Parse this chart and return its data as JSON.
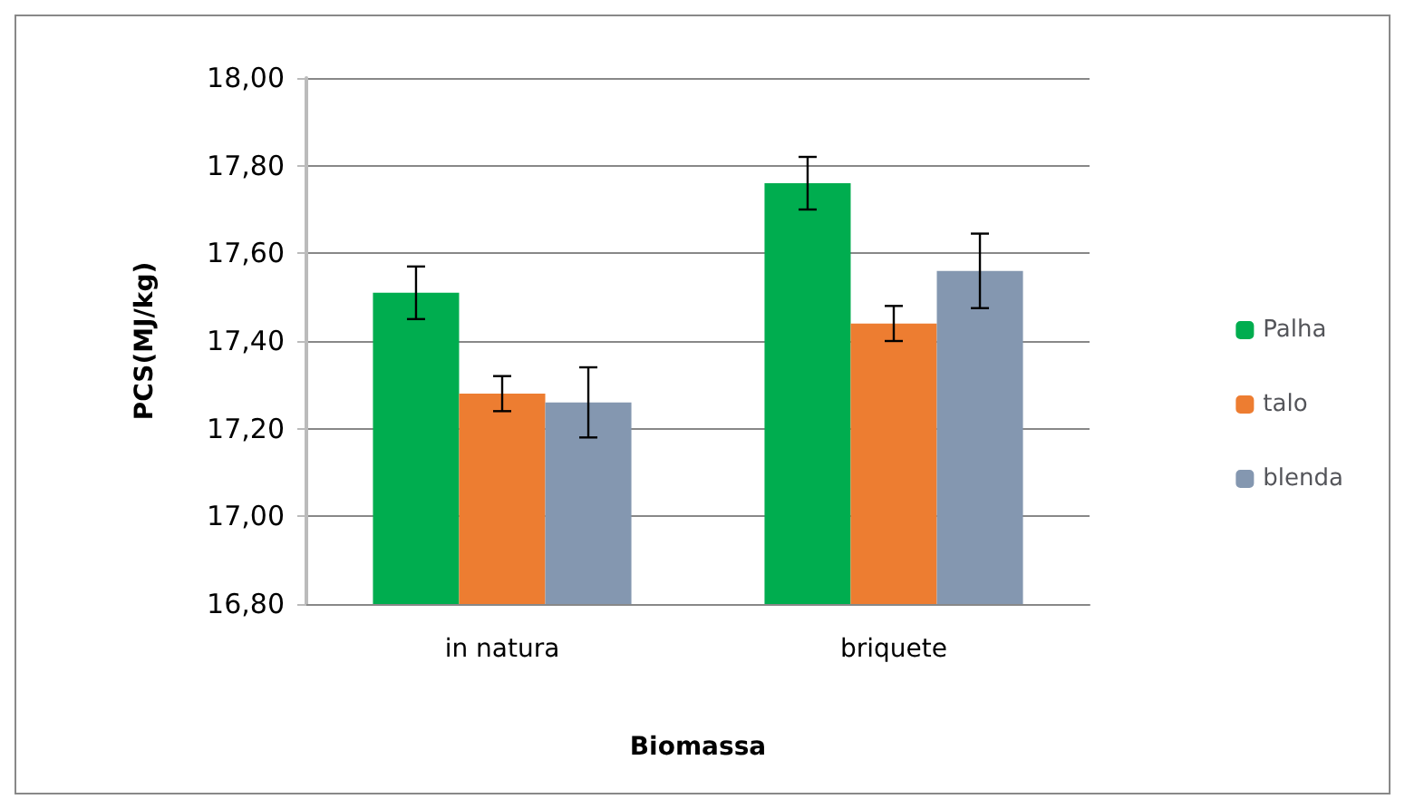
{
  "chart_data": {
    "type": "bar",
    "xlabel": "Biomassa",
    "ylabel": "PCS(MJ/kg)",
    "categories": [
      "in natura",
      "briquete"
    ],
    "series": [
      {
        "name": "Palha",
        "color": "#00ad4f",
        "values": [
          17.51,
          17.76
        ],
        "errors": [
          0.06,
          0.06
        ]
      },
      {
        "name": "talo",
        "color": "#ed7d31",
        "values": [
          17.28,
          17.44
        ],
        "errors": [
          0.04,
          0.04
        ]
      },
      {
        "name": "blenda",
        "color": "#8497b0",
        "values": [
          17.26,
          17.56
        ],
        "errors": [
          0.08,
          0.085
        ]
      }
    ],
    "ylim": [
      16.8,
      18.0
    ],
    "yticks": [
      {
        "value": 16.8,
        "label": "16,80"
      },
      {
        "value": 17.0,
        "label": "17,00"
      },
      {
        "value": 17.2,
        "label": "17,20"
      },
      {
        "value": 17.4,
        "label": "17,40"
      },
      {
        "value": 17.6,
        "label": "17,60"
      },
      {
        "value": 17.8,
        "label": "17,80"
      },
      {
        "value": 18.0,
        "label": "18,00"
      }
    ],
    "grid": "y",
    "legend": "right"
  }
}
